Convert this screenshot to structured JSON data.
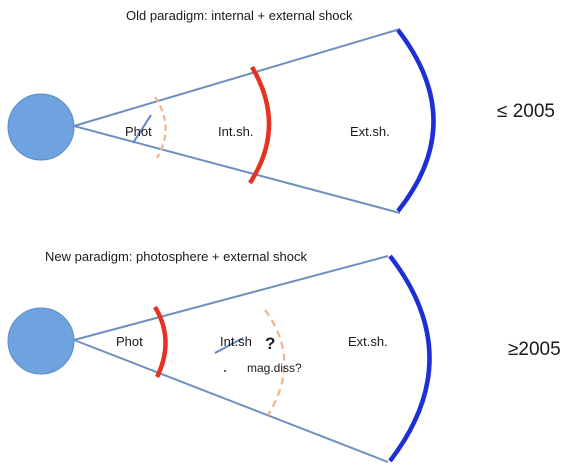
{
  "panel_old": {
    "title": "Old paradigm:   internal + external shock",
    "label_phot": "Phot",
    "label_int": "Int.sh.",
    "label_ext": "Ext.sh.",
    "era": "≤ 2005"
  },
  "panel_new": {
    "title": "New paradigm:   photosphere + external shock",
    "label_phot": "Phot",
    "label_int": "Int.sh",
    "question": "?",
    "label_mag": "mag.diss?",
    "label_ext": "Ext.sh.",
    "era": "≥2005"
  },
  "colors": {
    "cone_line": "#6f8fbf",
    "sphere_fill": "#6fa3df",
    "sphere_stroke": "#5b8cc8",
    "internal_shock": "#e63222",
    "external_shock": "#1f2fd8",
    "photosphere_dashed": "#f0b48a",
    "slash": "#5f86c5"
  }
}
